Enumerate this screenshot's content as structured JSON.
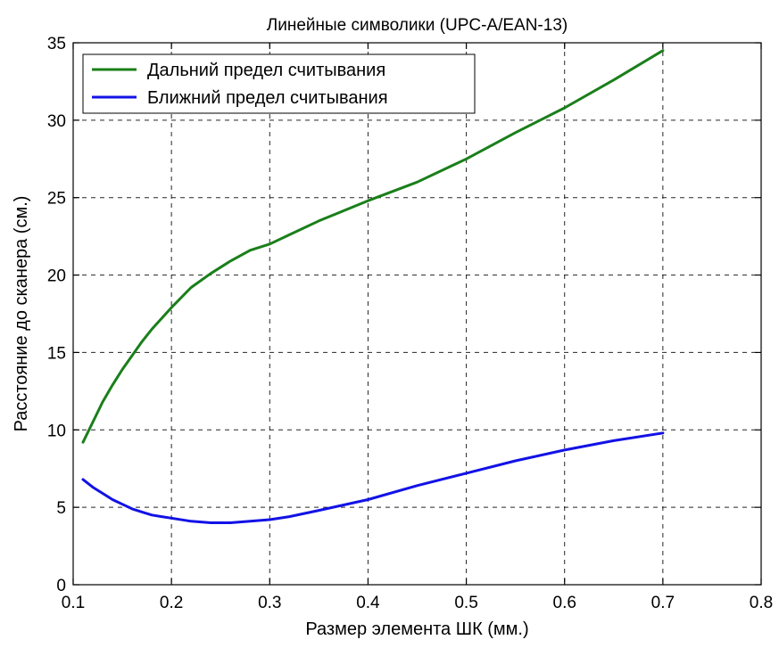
{
  "chart_data": {
    "type": "line",
    "title": "Линейные символики (UPC-A/EAN-13)",
    "xlabel": "Размер элемента ШК (мм.)",
    "ylabel": "Расстояние до сканера (см.)",
    "xlim": [
      0.1,
      0.8
    ],
    "ylim": [
      0,
      35
    ],
    "x_ticks": [
      0.1,
      0.2,
      0.3,
      0.4,
      0.5,
      0.6,
      0.7,
      0.8
    ],
    "y_ticks": [
      0,
      5,
      10,
      15,
      20,
      25,
      30,
      35
    ],
    "x_tick_labels": [
      "0.1",
      "0.2",
      "0.3",
      "0.4",
      "0.5",
      "0.6",
      "0.7",
      "0.8"
    ],
    "y_tick_labels": [
      "0",
      "5",
      "10",
      "15",
      "20",
      "25",
      "30",
      "35"
    ],
    "grid": true,
    "legend_position": "top-left",
    "x": [
      0.11,
      0.12,
      0.13,
      0.14,
      0.15,
      0.16,
      0.17,
      0.18,
      0.19,
      0.2,
      0.22,
      0.24,
      0.26,
      0.28,
      0.3,
      0.32,
      0.35,
      0.4,
      0.45,
      0.5,
      0.55,
      0.6,
      0.65,
      0.7
    ],
    "series": [
      {
        "name": "Дальний предел считывания",
        "color": "#1a7f1a",
        "values": [
          9.2,
          10.5,
          11.8,
          12.9,
          13.9,
          14.8,
          15.7,
          16.5,
          17.2,
          17.9,
          19.2,
          20.1,
          20.9,
          21.6,
          22.0,
          22.6,
          23.5,
          24.8,
          26.0,
          27.5,
          29.2,
          30.8,
          32.6,
          34.5
        ]
      },
      {
        "name": "Ближний предел считывания",
        "color": "#1212e6",
        "values": [
          6.8,
          6.3,
          5.9,
          5.5,
          5.2,
          4.9,
          4.7,
          4.5,
          4.4,
          4.3,
          4.1,
          4.0,
          4.0,
          4.1,
          4.2,
          4.4,
          4.8,
          5.5,
          6.4,
          7.2,
          8.0,
          8.7,
          9.3,
          9.8
        ]
      }
    ]
  }
}
